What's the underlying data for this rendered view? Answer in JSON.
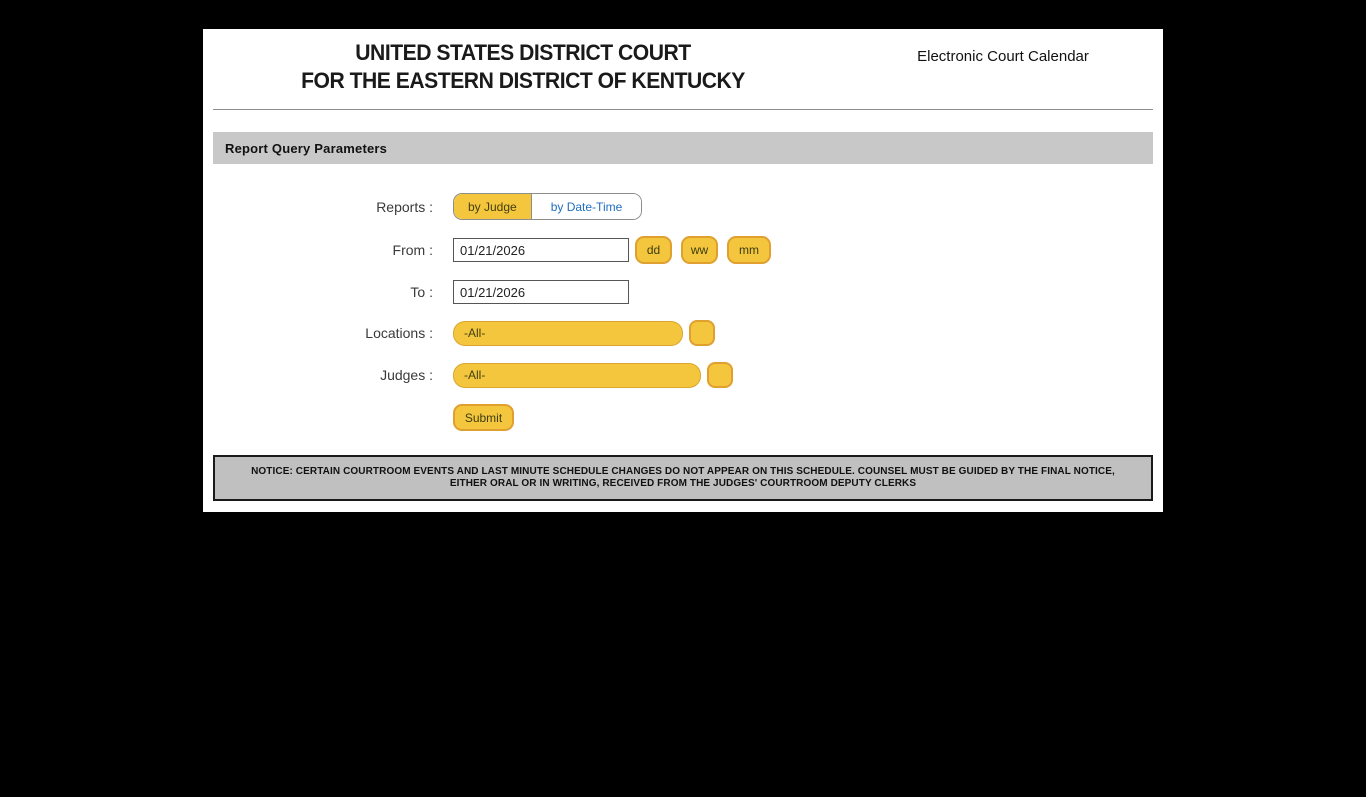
{
  "header": {
    "title_line1": "UNITED STATES DISTRICT COURT",
    "title_line2": "FOR THE EASTERN DISTRICT OF KENTUCKY",
    "calendar_label": "Electronic Court Calendar"
  },
  "section": {
    "title": "Report Query Parameters"
  },
  "form": {
    "reports": {
      "label": "Reports :",
      "options": [
        {
          "label": "by Judge",
          "selected": true
        },
        {
          "label": "by Date-Time",
          "selected": false
        }
      ]
    },
    "from": {
      "label": "From :",
      "value": "01/21/2026",
      "shortcut_buttons": [
        "dd",
        "ww",
        "mm"
      ]
    },
    "to": {
      "label": "To :",
      "value": "01/21/2026"
    },
    "locations": {
      "label": "Locations :",
      "value": "-All-"
    },
    "judges": {
      "label": "Judges :",
      "value": "-All-"
    },
    "submit_label": "Submit"
  },
  "notice": {
    "text": "NOTICE: CERTAIN COURTROOM EVENTS AND LAST MINUTE SCHEDULE CHANGES DO NOT APPEAR ON THIS SCHEDULE. COUNSEL MUST BE GUIDED BY THE FINAL NOTICE, EITHER ORAL OR IN WRITING, RECEIVED FROM THE JUDGES' COURTROOM DEPUTY CLERKS"
  },
  "colors": {
    "accent_yellow": "#F4C63E",
    "accent_gold_border": "#DFA030",
    "link_blue": "#1F6FBF",
    "section_bar_gray": "#C8C8C8",
    "notice_gray": "#C0C0C0",
    "page_background": "#FFFFFF",
    "outer_background": "#000000"
  }
}
